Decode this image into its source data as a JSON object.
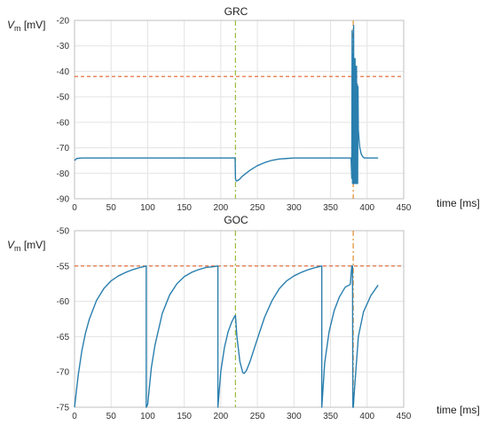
{
  "colors": {
    "trace": "#2a7fae",
    "threshold": "#e2622a",
    "stimulus": "#9bbd3c",
    "spike_marker": "#e08a2a"
  },
  "chart_data": [
    {
      "type": "line",
      "title": "GRC",
      "ylabel_var": "V",
      "ylabel_sub": "m",
      "ylabel_unit": " [mV]",
      "xlabel": "time [ms]",
      "xlim": [
        0,
        450
      ],
      "ylim": [
        -90,
        -20
      ],
      "xticks": [
        0,
        50,
        100,
        150,
        200,
        250,
        300,
        350,
        400,
        450
      ],
      "yticks": [
        -90,
        -80,
        -70,
        -60,
        -50,
        -40,
        -30,
        -20
      ],
      "grid": true,
      "threshold": -42,
      "stimulus_line": 220,
      "spike_line": 381,
      "series": [
        {
          "x": [
            0,
            3,
            10,
            20,
            100,
            200,
            219.5,
            220,
            221,
            222,
            225,
            230,
            240,
            250,
            260,
            270,
            280,
            290,
            300,
            310,
            320,
            330,
            340,
            350,
            360,
            370,
            378,
            379,
            379.5,
            380,
            380.5,
            381,
            381.5,
            382,
            382.5,
            383,
            383.5,
            384,
            384.5,
            385,
            385.5,
            386,
            386.5,
            387,
            387.5,
            388,
            389,
            390,
            392,
            394,
            396,
            400,
            405,
            415
          ],
          "y": [
            -75,
            -74.2,
            -74,
            -74,
            -74,
            -74,
            -74,
            -82,
            -83,
            -83,
            -82.5,
            -81,
            -78.8,
            -77,
            -75.8,
            -74.9,
            -74.4,
            -74.2,
            -74,
            -74,
            -74,
            -74,
            -74,
            -74,
            -74,
            -74,
            -74,
            -82,
            -24,
            -84,
            -33,
            -84,
            -22,
            -84,
            -35,
            -84,
            -35,
            -84,
            -38,
            -84,
            -38,
            -84,
            -45,
            -84,
            -46,
            -63,
            -67,
            -70,
            -72.5,
            -73.5,
            -74,
            -74,
            -74,
            -74
          ]
        }
      ]
    },
    {
      "type": "line",
      "title": "GOC",
      "ylabel_var": "V",
      "ylabel_sub": "m",
      "ylabel_unit": " [mV]",
      "xlabel": "time [ms]",
      "xlim": [
        0,
        450
      ],
      "ylim": [
        -75,
        -50
      ],
      "xticks": [
        0,
        50,
        100,
        150,
        200,
        250,
        300,
        350,
        400,
        450
      ],
      "yticks": [
        -75,
        -70,
        -65,
        -60,
        -55,
        -50
      ],
      "grid": true,
      "threshold": -55,
      "stimulus_line": 220,
      "spike_line": 381,
      "series": [
        {
          "x": [
            0,
            5,
            10,
            15,
            20,
            30,
            40,
            50,
            60,
            70,
            80,
            90,
            98,
            98.01,
            100,
            105,
            110,
            120,
            130,
            140,
            150,
            160,
            170,
            180,
            190,
            196,
            196.01,
            200,
            205,
            210,
            215,
            219,
            220,
            222,
            226,
            230,
            232,
            235,
            240,
            250,
            260,
            270,
            280,
            290,
            300,
            310,
            320,
            330,
            338,
            338.01,
            342,
            348,
            355,
            362,
            370,
            377,
            379,
            380,
            380.5,
            381,
            381.5,
            382,
            388,
            395,
            405,
            415
          ],
          "y": [
            -75,
            -70.5,
            -67,
            -64.5,
            -62.6,
            -59.9,
            -58.2,
            -57.1,
            -56.4,
            -55.9,
            -55.5,
            -55.2,
            -55,
            -75,
            -74.6,
            -69.4,
            -66.2,
            -61.7,
            -59.1,
            -57.5,
            -56.5,
            -55.9,
            -55.5,
            -55.2,
            -55.1,
            -55,
            -75,
            -69.9,
            -66.5,
            -64.3,
            -62.9,
            -62.1,
            -62,
            -65,
            -68.5,
            -70.1,
            -70.2,
            -69.8,
            -68.5,
            -65.3,
            -62.2,
            -59.9,
            -58.2,
            -57.1,
            -56.4,
            -55.9,
            -55.5,
            -55.2,
            -55,
            -75,
            -68.7,
            -64.3,
            -61.3,
            -59.4,
            -58,
            -57.6,
            -55,
            -55,
            -75,
            -75,
            -74.5,
            -73.5,
            -65,
            -61.5,
            -59.2,
            -57.7
          ]
        }
      ]
    }
  ]
}
